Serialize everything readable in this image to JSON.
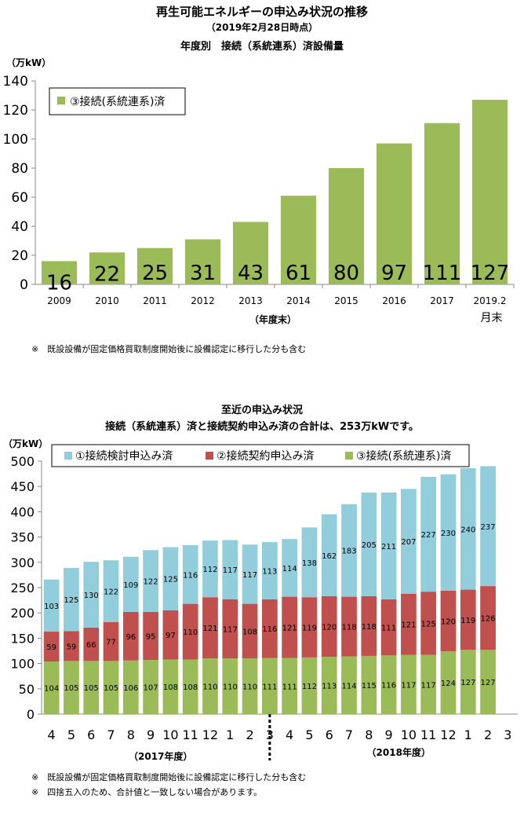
{
  "header": {
    "title": "再生可能エネルギーの申込み状況の推移",
    "date": "（2019年2月28日時点）",
    "subtitle": "年度別　接続（系統連系）済設備量"
  },
  "section2": {
    "title": "至近の申込み状況",
    "subtitle": "接続（系統連系）済と接続契約申込み済の合計は、253万kWです。"
  },
  "notes": {
    "note1": "※　既設設備が固定価格買取制度開始後に設備認定に移行した分も含む",
    "note2": "※　既設設備が固定価格買取制度開始後に設備認定に移行した分も含む",
    "note3": "※　四捨五入のため、合計値と一致しない場合があります。"
  },
  "colors": {
    "green": "#9BBB59",
    "red": "#C0504D",
    "blue": "#92CDDC"
  },
  "chart_data": [
    {
      "type": "bar",
      "ylabel": "（万kW）",
      "xlabel": "（年度末）",
      "ylim": [
        0,
        140
      ],
      "yticks": [
        0,
        20,
        40,
        60,
        80,
        100,
        120,
        140
      ],
      "categories": [
        "2009",
        "2010",
        "2011",
        "2012",
        "2013",
        "2014",
        "2015",
        "2016",
        "2017",
        "2019.2"
      ],
      "category_sublabels": [
        "",
        "",
        "",
        "",
        "",
        "",
        "",
        "",
        "",
        "月末"
      ],
      "series": [
        {
          "name": "③接続(系統連系)済",
          "values": [
            16,
            22,
            25,
            31,
            43,
            61,
            80,
            97,
            111,
            127
          ]
        }
      ],
      "legend": "top-left",
      "grid": false
    },
    {
      "type": "bar",
      "stacked": true,
      "ylabel": "（万kW）",
      "ylim": [
        0,
        500
      ],
      "yticks": [
        0,
        50,
        100,
        150,
        200,
        250,
        300,
        350,
        400,
        450,
        500
      ],
      "categories": [
        "4",
        "5",
        "6",
        "7",
        "8",
        "9",
        "10",
        "11",
        "12",
        "1",
        "2",
        "3",
        "4",
        "5",
        "6",
        "7",
        "8",
        "9",
        "10",
        "11",
        "12",
        "1",
        "2",
        "3"
      ],
      "group_labels": [
        "（2017年度）",
        "（2018年度）"
      ],
      "series": [
        {
          "name": "③接続(系統連系)済",
          "values": [
            104,
            105,
            105,
            105,
            106,
            107,
            108,
            108,
            110,
            110,
            110,
            111,
            111,
            112,
            113,
            114,
            115,
            116,
            117,
            117,
            124,
            127,
            127,
            null
          ]
        },
        {
          "name": "②接続契約申込み済",
          "values": [
            59,
            59,
            66,
            77,
            96,
            95,
            97,
            110,
            121,
            117,
            108,
            116,
            121,
            119,
            120,
            118,
            118,
            111,
            121,
            125,
            120,
            119,
            126,
            null
          ]
        },
        {
          "name": "①接続検討申込み済",
          "values": [
            103,
            125,
            130,
            122,
            109,
            122,
            125,
            116,
            112,
            117,
            117,
            113,
            114,
            138,
            162,
            183,
            205,
            211,
            207,
            227,
            230,
            240,
            237,
            null
          ]
        }
      ],
      "legend": "top",
      "grid": false
    }
  ]
}
